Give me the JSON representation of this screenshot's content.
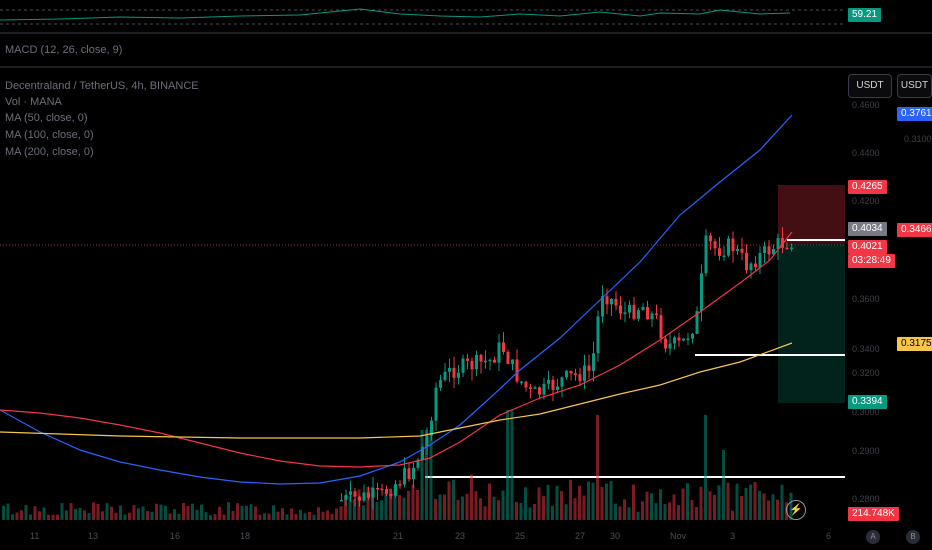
{
  "rsi": {
    "value": "59.21"
  },
  "macd": {
    "label": "MACD (12, 26, close, 9)"
  },
  "legend": {
    "symbol": "Decentraland / TetherUS, 4h, BINANCE",
    "vol": "Vol · MANA",
    "ma50": "MA (50, close, 0)",
    "ma100": "MA (100, close, 0)",
    "ma200": "MA (200, close, 0)"
  },
  "buttons": {
    "usdt_left": "USDT",
    "usdt_right": "USDT"
  },
  "price_badges": {
    "ma200": {
      "value": "0.3761",
      "color": "#2962ff"
    },
    "stop": {
      "value": "0.4265",
      "color": "#f23645"
    },
    "last_gray": {
      "value": "0.4034",
      "color": "#787b86"
    },
    "ma100": {
      "value": "0.3466",
      "color": "#f23645"
    },
    "last": {
      "value": "0.4021",
      "color": "#f23645"
    },
    "countdown": "03:28:49",
    "ma50": {
      "value": "0.3175",
      "color": "#f7c548"
    },
    "target": {
      "value": "0.3394",
      "color": "#089981"
    },
    "volume": {
      "value": "214.748K",
      "color": "#f23645"
    }
  },
  "y_ticks": [
    "0.4600",
    "0.4400",
    "0.4200",
    "0.3600",
    "0.3400",
    "0.3200",
    "0.3100",
    "0.3000",
    "0.2900",
    "0.2800"
  ],
  "x_ticks": [
    "11",
    "13",
    "16",
    "18",
    "21",
    "23",
    "25",
    "27",
    "30",
    "Nov",
    "3",
    "6"
  ],
  "axis_icons": {
    "auto": "A",
    "bookmark": "B"
  },
  "colors": {
    "up": "#089981",
    "down": "#f23645",
    "ma_fast": "#2962ff",
    "ma_mid": "#f23645",
    "ma_slow": "#f7c548"
  }
}
